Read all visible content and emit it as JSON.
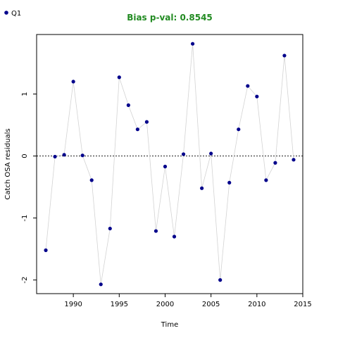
{
  "chart_data": {
    "type": "scatter",
    "title": "Bias p-val: 0.8545",
    "title_color": "#228B22",
    "xlabel": "Time",
    "ylabel": "Catch OSA residuals",
    "xlim": [
      1986,
      2015
    ],
    "ylim": [
      -2.22,
      1.96
    ],
    "x_ticks": [
      1990,
      1995,
      2000,
      2005,
      2010,
      2015
    ],
    "y_ticks": [
      -2,
      -1,
      0,
      1
    ],
    "reference_line": 0,
    "grid": false,
    "legend": {
      "position": "top-left"
    },
    "series": [
      {
        "name": "Q1",
        "point_color": "#00008B",
        "line_color": "#d3d3d3",
        "x": [
          1987,
          1988,
          1989,
          1990,
          1991,
          1992,
          1993,
          1994,
          1995,
          1996,
          1997,
          1998,
          1999,
          2000,
          2001,
          2002,
          2003,
          2004,
          2005,
          2006,
          2007,
          2008,
          2009,
          2010,
          2011,
          2012,
          2013,
          2014
        ],
        "y": [
          -1.52,
          -0.01,
          0.02,
          1.2,
          0.01,
          -0.39,
          -2.07,
          -1.17,
          1.27,
          0.82,
          0.43,
          0.55,
          -1.21,
          -0.17,
          -1.3,
          0.03,
          1.81,
          -0.52,
          0.04,
          -2.0,
          -0.43,
          0.43,
          1.13,
          0.96,
          -0.39,
          -0.11,
          1.62,
          -0.06
        ]
      }
    ]
  }
}
